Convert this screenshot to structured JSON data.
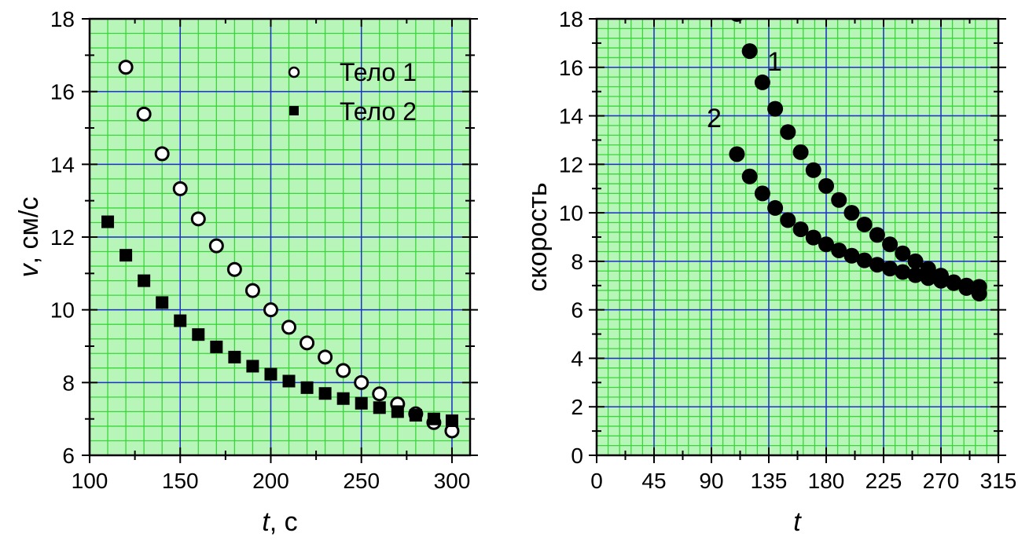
{
  "chart_data": [
    {
      "type": "scatter",
      "xlim": [
        100,
        310
      ],
      "ylim": [
        6,
        18
      ],
      "xticks": [
        "100",
        "150",
        "200",
        "250",
        "300"
      ],
      "yticks": [
        "6",
        "8",
        "10",
        "12",
        "14",
        "16",
        "18"
      ],
      "xlabel_italic": "t",
      "xlabel_rest": ", с",
      "ylabel_italic": "v",
      "ylabel_rest": ", см/с",
      "grid": true,
      "legend_position": "top-right",
      "series": [
        {
          "name": "Тело 1",
          "marker": "open-circle",
          "x": [
            120,
            130,
            140,
            150,
            160,
            170,
            180,
            190,
            200,
            210,
            220,
            230,
            240,
            250,
            260,
            270,
            280,
            290,
            300
          ],
          "y": [
            16.67,
            15.38,
            14.29,
            13.33,
            12.5,
            11.76,
            11.11,
            10.53,
            10.0,
            9.52,
            9.09,
            8.7,
            8.33,
            8.0,
            7.69,
            7.41,
            7.14,
            6.9,
            6.67
          ]
        },
        {
          "name": "Тело 2",
          "marker": "filled-square",
          "x": [
            110,
            120,
            130,
            140,
            150,
            160,
            170,
            180,
            190,
            200,
            210,
            220,
            230,
            240,
            250,
            260,
            270,
            280,
            290,
            300
          ],
          "y": [
            12.42,
            11.5,
            10.8,
            10.2,
            9.7,
            9.32,
            8.98,
            8.7,
            8.45,
            8.23,
            8.04,
            7.86,
            7.7,
            7.56,
            7.43,
            7.31,
            7.2,
            7.1,
            7.0,
            6.95
          ]
        }
      ]
    },
    {
      "type": "scatter",
      "xlim": [
        0,
        315
      ],
      "ylim": [
        0,
        18
      ],
      "xticks": [
        "0",
        "45",
        "90",
        "135",
        "180",
        "225",
        "270",
        "315"
      ],
      "yticks": [
        "0",
        "2",
        "4",
        "6",
        "8",
        "10",
        "12",
        "14",
        "16",
        "18"
      ],
      "xlabel_italic": "t",
      "ylabel": "скорость",
      "grid": true,
      "annotations": [
        "1",
        "2"
      ],
      "series": [
        {
          "marker": "filled-circle",
          "x": [
            110,
            120,
            130,
            140,
            150,
            160,
            170,
            180,
            190,
            200,
            210,
            220,
            230,
            240,
            250,
            260,
            270,
            280,
            290,
            300
          ],
          "y": [
            18.2,
            16.67,
            15.38,
            14.29,
            13.33,
            12.5,
            11.76,
            11.11,
            10.53,
            10.0,
            9.52,
            9.09,
            8.7,
            8.33,
            8.0,
            7.69,
            7.41,
            7.14,
            6.9,
            6.67
          ]
        },
        {
          "marker": "filled-circle",
          "x": [
            110,
            120,
            130,
            140,
            150,
            160,
            170,
            180,
            190,
            200,
            210,
            220,
            230,
            240,
            250,
            260,
            270,
            280,
            290,
            300
          ],
          "y": [
            12.42,
            11.5,
            10.8,
            10.2,
            9.7,
            9.32,
            8.98,
            8.7,
            8.45,
            8.23,
            8.04,
            7.86,
            7.7,
            7.56,
            7.43,
            7.31,
            7.2,
            7.1,
            7.0,
            6.95
          ]
        }
      ]
    }
  ],
  "colors": {
    "plot_bg": "#b8f5b8",
    "minor_grid": "#39d639",
    "major_grid": "#1f2fd0",
    "axis": "#000000",
    "marker": "#000000"
  }
}
